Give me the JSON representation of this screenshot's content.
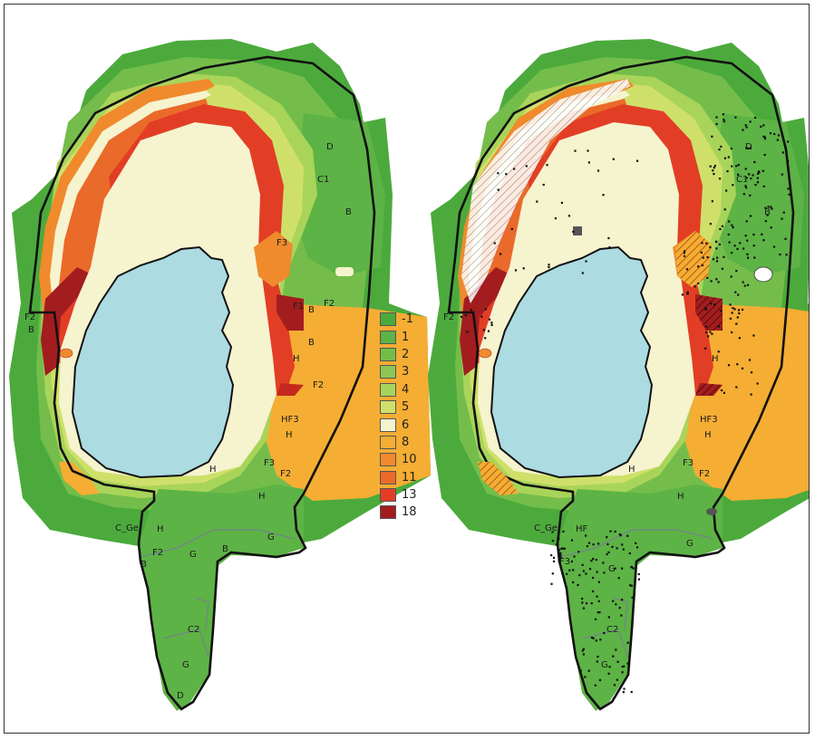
{
  "legend": {
    "items": [
      {
        "label": "-1",
        "color": "#4caa3c"
      },
      {
        "label": "1",
        "color": "#5db345"
      },
      {
        "label": "2",
        "color": "#74bd4b"
      },
      {
        "label": "3",
        "color": "#8ec653"
      },
      {
        "label": "4",
        "color": "#a9d45a"
      },
      {
        "label": "5",
        "color": "#cfe06a"
      },
      {
        "label": "6",
        "color": "#f6f3cf"
      },
      {
        "label": "8",
        "color": "#f5ad33"
      },
      {
        "label": "10",
        "color": "#f08a2c"
      },
      {
        "label": "11",
        "color": "#ea6a2a"
      },
      {
        "label": "13",
        "color": "#e23e26"
      },
      {
        "label": "18",
        "color": "#a31d1f"
      }
    ]
  },
  "colors": {
    "lake": "#acdbe2",
    "boundary": "#111111"
  },
  "left_map": {
    "labels": {
      "d_top": "D",
      "c1": "C1",
      "b_east": "B",
      "f3_north": "F3",
      "f1": "F1",
      "b_mid": "B",
      "f2_east": "F2",
      "f2_west": "F2",
      "b_west": "B",
      "b_cove": "B",
      "h1": "H",
      "f2_south": "F2",
      "hf3": "HF3",
      "h2": "H",
      "f3_south": "F3",
      "f2_low": "F2",
      "h_low": "H",
      "h_lake": "H",
      "c_ge": "C_Ge",
      "h_b": "H",
      "f2_b": "F2",
      "g1": "G",
      "b_b": "B",
      "g2": "G",
      "b_sw": "B",
      "c2": "C2",
      "g3": "G",
      "d_bottom": "D"
    }
  },
  "right_map": {
    "labels": {
      "d_top": "D",
      "c1": "C1",
      "b_east": "B",
      "f2_west": "F2",
      "h1": "H",
      "hf3": "HF3",
      "h2": "H",
      "f3": "F3",
      "f2": "F2",
      "h_low": "H",
      "c_ge": "C_Ge",
      "hf": "HF",
      "f3_b": "F3",
      "g1": "G",
      "g2": "G",
      "c2": "C2",
      "g3": "G",
      "h_lake": "H"
    }
  }
}
